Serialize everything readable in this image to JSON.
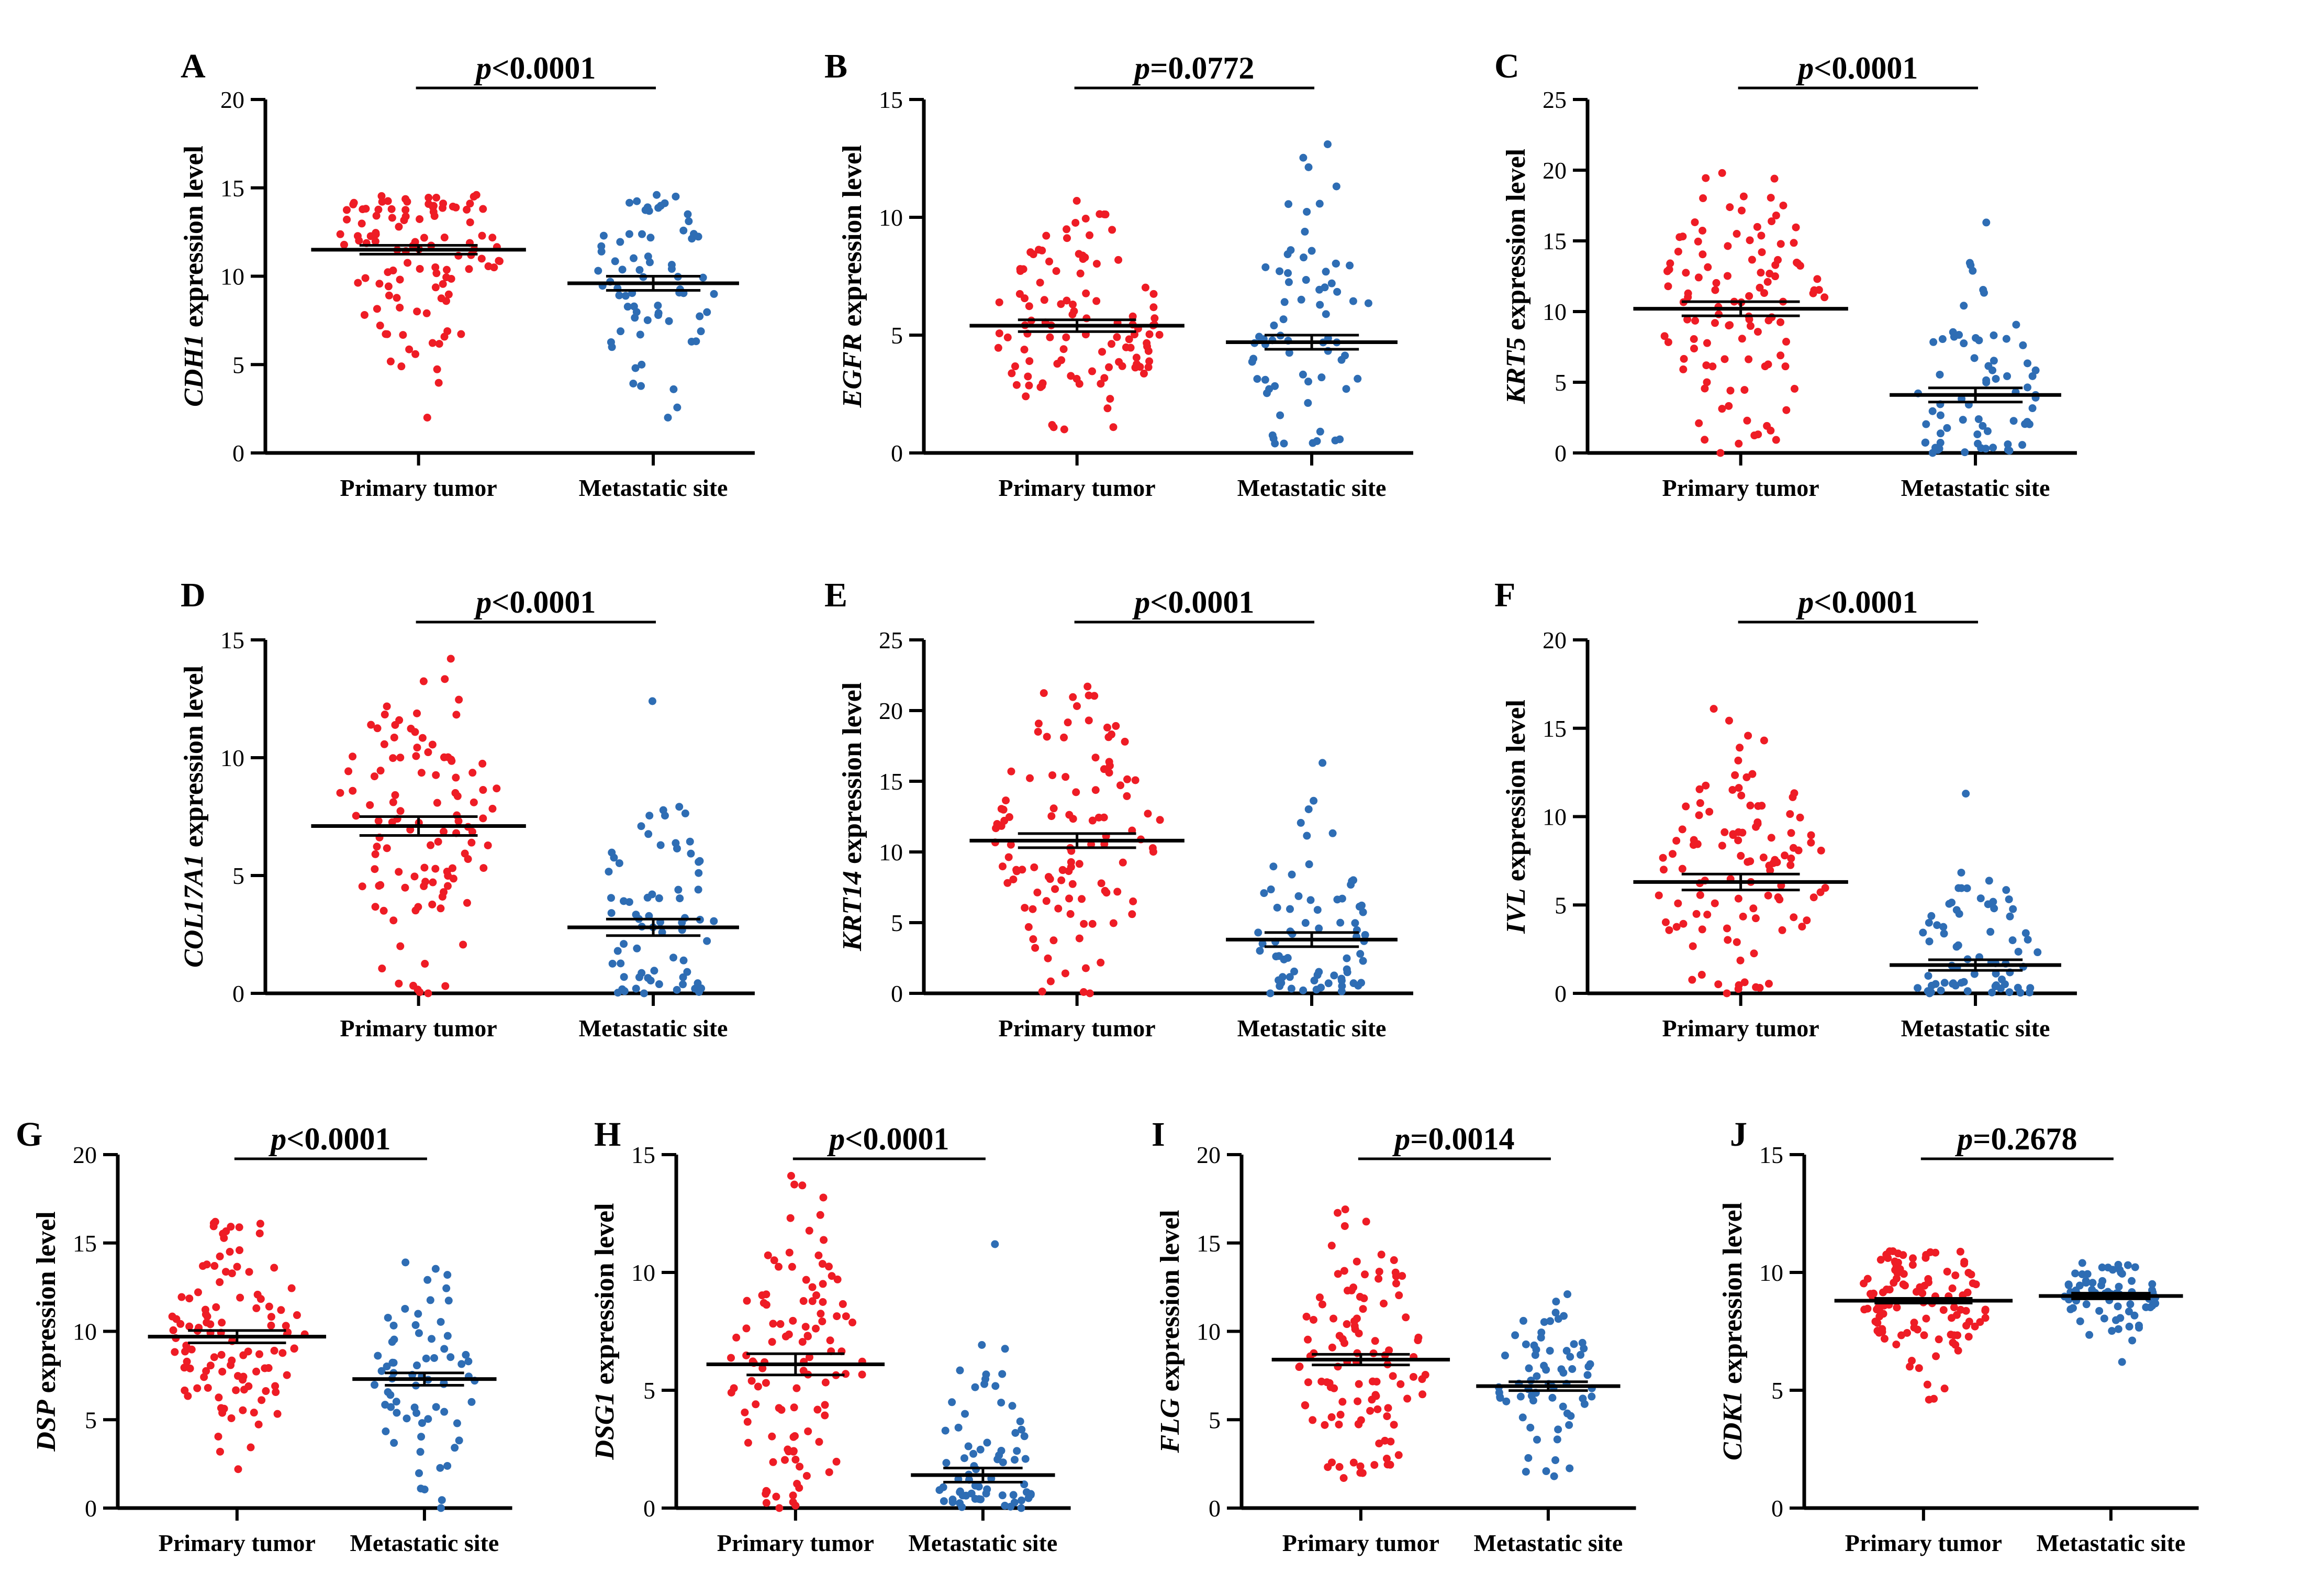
{
  "colors": {
    "primary": "#ee1c25",
    "metastatic": "#2e6db4",
    "axis": "#000000"
  },
  "categories": [
    "Primary tumor",
    "Metastatic site"
  ],
  "ylabel_suffix": " expression level",
  "chart_data": [
    {
      "letter": "A",
      "type": "scatter",
      "gene": "CDH1",
      "ylim": [
        0,
        20
      ],
      "ticks": [
        0,
        5,
        10,
        15,
        20
      ],
      "p_prefix": "p",
      "p_rest": "<0.0001",
      "series": [
        {
          "name": "Primary tumor",
          "n": 110,
          "min": 2,
          "max": 14.6,
          "mean": 11.5,
          "sem": 0.25
        },
        {
          "name": "Metastatic site",
          "n": 70,
          "min": 2,
          "max": 14.6,
          "mean": 9.6,
          "sem": 0.4
        }
      ]
    },
    {
      "letter": "B",
      "type": "scatter",
      "gene": "EGFR",
      "ylim": [
        0,
        15
      ],
      "ticks": [
        0,
        5,
        10,
        15
      ],
      "p_prefix": "p",
      "p_rest": "=0.0772",
      "series": [
        {
          "name": "Primary tumor",
          "n": 110,
          "min": 1,
          "max": 10.7,
          "mean": 5.4,
          "sem": 0.25
        },
        {
          "name": "Metastatic site",
          "n": 70,
          "min": 0.4,
          "max": 13.1,
          "mean": 4.7,
          "sem": 0.3
        }
      ]
    },
    {
      "letter": "C",
      "type": "scatter",
      "gene": "KRT5",
      "ylim": [
        0,
        25
      ],
      "ticks": [
        0,
        5,
        10,
        15,
        20,
        25
      ],
      "p_prefix": "p",
      "p_rest": "<0.0001",
      "series": [
        {
          "name": "Primary tumor",
          "n": 110,
          "min": 0,
          "max": 19.8,
          "mean": 10.2,
          "sem": 0.5
        },
        {
          "name": "Metastatic site",
          "n": 70,
          "min": 0,
          "max": 16.3,
          "mean": 4.1,
          "sem": 0.5
        }
      ]
    },
    {
      "letter": "D",
      "type": "scatter",
      "gene": "COL17A1",
      "ylim": [
        0,
        15
      ],
      "ticks": [
        0,
        5,
        10,
        15
      ],
      "p_prefix": "p",
      "p_rest": "<0.0001",
      "series": [
        {
          "name": "Primary tumor",
          "n": 110,
          "min": 0,
          "max": 14.2,
          "mean": 7.1,
          "sem": 0.4
        },
        {
          "name": "Metastatic site",
          "n": 70,
          "min": 0,
          "max": 12.4,
          "mean": 2.8,
          "sem": 0.35
        }
      ]
    },
    {
      "letter": "E",
      "type": "scatter",
      "gene": "KRT14",
      "ylim": [
        0,
        25
      ],
      "ticks": [
        0,
        5,
        10,
        15,
        20,
        25
      ],
      "p_prefix": "p",
      "p_rest": "<0.0001",
      "series": [
        {
          "name": "Primary tumor",
          "n": 110,
          "min": 0,
          "max": 21.7,
          "mean": 10.8,
          "sem": 0.5
        },
        {
          "name": "Metastatic site",
          "n": 70,
          "min": 0,
          "max": 16.3,
          "mean": 3.8,
          "sem": 0.5
        }
      ]
    },
    {
      "letter": "F",
      "type": "scatter",
      "gene": "IVL",
      "ylim": [
        0,
        20
      ],
      "ticks": [
        0,
        5,
        10,
        15,
        20
      ],
      "p_prefix": "p",
      "p_rest": "<0.0001",
      "series": [
        {
          "name": "Primary tumor",
          "n": 110,
          "min": 0,
          "max": 16.1,
          "mean": 6.3,
          "sem": 0.45
        },
        {
          "name": "Metastatic site",
          "n": 70,
          "min": 0,
          "max": 11.3,
          "mean": 1.6,
          "sem": 0.3
        }
      ]
    },
    {
      "letter": "G",
      "type": "scatter",
      "gene": "DSP",
      "ylim": [
        0,
        20
      ],
      "ticks": [
        0,
        5,
        10,
        15,
        20
      ],
      "p_prefix": "p",
      "p_rest": "<0.0001",
      "series": [
        {
          "name": "Primary tumor",
          "n": 110,
          "min": 2.2,
          "max": 16.2,
          "mean": 9.7,
          "sem": 0.35
        },
        {
          "name": "Metastatic site",
          "n": 70,
          "min": 0,
          "max": 13.9,
          "mean": 7.3,
          "sem": 0.35
        }
      ]
    },
    {
      "letter": "H",
      "type": "scatter",
      "gene": "DSG1",
      "ylim": [
        0,
        15
      ],
      "ticks": [
        0,
        5,
        10,
        15
      ],
      "p_prefix": "p",
      "p_rest": "<0.0001",
      "series": [
        {
          "name": "Primary tumor",
          "n": 110,
          "min": 0,
          "max": 14.1,
          "mean": 6.1,
          "sem": 0.45
        },
        {
          "name": "Metastatic site",
          "n": 70,
          "min": 0,
          "max": 11.2,
          "mean": 1.4,
          "sem": 0.3
        }
      ]
    },
    {
      "letter": "I",
      "type": "scatter",
      "gene": "FLG",
      "ylim": [
        0,
        20
      ],
      "ticks": [
        0,
        5,
        10,
        15,
        20
      ],
      "p_prefix": "p",
      "p_rest": "=0.0014",
      "series": [
        {
          "name": "Primary tumor",
          "n": 110,
          "min": 1.7,
          "max": 16.9,
          "mean": 8.4,
          "sem": 0.3
        },
        {
          "name": "Metastatic site",
          "n": 70,
          "min": 1.8,
          "max": 12.1,
          "mean": 6.9,
          "sem": 0.25
        }
      ]
    },
    {
      "letter": "J",
      "type": "scatter",
      "gene": "CDK1",
      "ylim": [
        0,
        15
      ],
      "ticks": [
        0,
        5,
        10,
        15
      ],
      "p_prefix": "p",
      "p_rest": "=0.2678",
      "series": [
        {
          "name": "Primary tumor",
          "n": 110,
          "min": 4.6,
          "max": 10.9,
          "mean": 8.8,
          "sem": 0.1
        },
        {
          "name": "Metastatic site",
          "n": 70,
          "min": 6.2,
          "max": 10.4,
          "mean": 9.0,
          "sem": 0.12
        }
      ]
    }
  ]
}
